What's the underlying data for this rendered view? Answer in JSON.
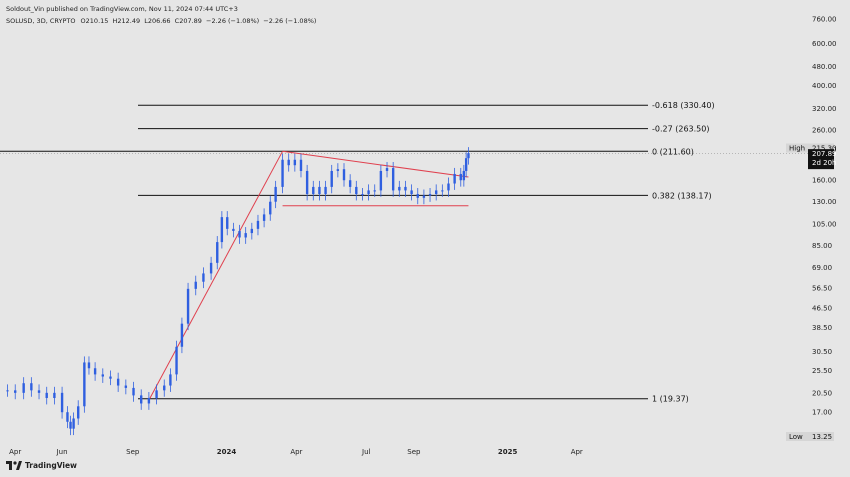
{
  "header": {
    "publisher": "Soldout_Vin published on TradingView.com, Nov 11, 2024 07:44 UTC+3",
    "symbol": "SOLUSD, 3D, CRYPTO",
    "open_label": "O",
    "open": "210.15",
    "high_label": "H",
    "high": "212.49",
    "low_label": "L",
    "low": "206.66",
    "close_label": "C",
    "close": "207.89",
    "change": "−2.26 (−1.08%)",
    "change2": "−2.26 (−1.08%)"
  },
  "footer": {
    "brand": "TradingView"
  },
  "colors": {
    "background": "#e6e6e6",
    "candle": "#2f5fe0",
    "trendline": "#e0404e",
    "fib_line": "#111111",
    "price_tag": "#111111"
  },
  "price_tags": {
    "high_label": "High",
    "high_value": "215.30",
    "last_price": "207.89",
    "countdown": "2d 20h",
    "low_label": "Low",
    "low_value": "13.25"
  },
  "chart_data": {
    "type": "candlestick",
    "title": "SOLUSD, 3D, CRYPTO",
    "y_scale": "log",
    "ylim": [
      13.25,
      760
    ],
    "y_ticks": [
      "760.00",
      "600.00",
      "480.00",
      "400.00",
      "320.00",
      "260.00",
      "215.30",
      "160.00",
      "130.00",
      "105.00",
      "85.00",
      "69.00",
      "56.50",
      "46.50",
      "38.50",
      "30.50",
      "25.50",
      "20.50",
      "17.00"
    ],
    "x_ticks": [
      "Apr",
      "Jun",
      "Sep",
      "2024",
      "Apr",
      "Jul",
      "Sep",
      "2025",
      "Apr"
    ],
    "fib_levels": [
      {
        "label": "-0.618 (330.40)",
        "value": 330.4
      },
      {
        "label": "-0.27 (263.50)",
        "value": 263.5
      },
      {
        "label": "0 (211.60)",
        "value": 211.6
      },
      {
        "label": "0.382 (138.17)",
        "value": 138.17
      },
      {
        "label": "1 (19.37)",
        "value": 19.37
      }
    ],
    "trendlines": [
      {
        "name": "rally",
        "from": [
          "2023-09-23",
          19.37
        ],
        "to": [
          "2024-03-14",
          211.6
        ]
      },
      {
        "name": "descending resistance",
        "from": [
          "2024-03-14",
          211.6
        ],
        "to": [
          "2024-11-11",
          165
        ]
      },
      {
        "name": "support",
        "from": [
          "2024-03-14",
          125
        ],
        "to": [
          "2024-11-11",
          125
        ]
      }
    ],
    "close_series": [
      [
        "2023-03-22",
        21.0
      ],
      [
        "2023-04-01",
        20.5
      ],
      [
        "2023-04-12",
        22.5
      ],
      [
        "2023-04-22",
        21.0
      ],
      [
        "2023-05-02",
        20.5
      ],
      [
        "2023-05-12",
        19.5
      ],
      [
        "2023-05-22",
        20.5
      ],
      [
        "2023-06-01",
        17.0
      ],
      [
        "2023-06-08",
        15.5
      ],
      [
        "2023-06-12",
        14.5
      ],
      [
        "2023-06-16",
        16.0
      ],
      [
        "2023-06-22",
        18.0
      ],
      [
        "2023-06-30",
        27.5
      ],
      [
        "2023-07-06",
        26.0
      ],
      [
        "2023-07-14",
        24.5
      ],
      [
        "2023-07-24",
        24.0
      ],
      [
        "2023-08-03",
        23.5
      ],
      [
        "2023-08-13",
        22.0
      ],
      [
        "2023-08-23",
        21.5
      ],
      [
        "2023-09-02",
        20.0
      ],
      [
        "2023-09-12",
        18.5
      ],
      [
        "2023-09-22",
        19.5
      ],
      [
        "2023-10-02",
        21.0
      ],
      [
        "2023-10-12",
        22.0
      ],
      [
        "2023-10-20",
        24.5
      ],
      [
        "2023-10-28",
        32.0
      ],
      [
        "2023-11-04",
        40.0
      ],
      [
        "2023-11-12",
        56.0
      ],
      [
        "2023-11-22",
        60.0
      ],
      [
        "2023-12-02",
        65.0
      ],
      [
        "2023-12-12",
        72.0
      ],
      [
        "2023-12-20",
        88.0
      ],
      [
        "2023-12-26",
        112.0
      ],
      [
        "2024-01-02",
        100.0
      ],
      [
        "2024-01-10",
        98.0
      ],
      [
        "2024-01-18",
        92.0
      ],
      [
        "2024-01-26",
        96.0
      ],
      [
        "2024-02-03",
        100.0
      ],
      [
        "2024-02-11",
        108.0
      ],
      [
        "2024-02-19",
        115.0
      ],
      [
        "2024-02-27",
        130.0
      ],
      [
        "2024-03-05",
        150.0
      ],
      [
        "2024-03-14",
        195.0
      ],
      [
        "2024-03-22",
        185.0
      ],
      [
        "2024-03-30",
        195.0
      ],
      [
        "2024-04-07",
        175.0
      ],
      [
        "2024-04-15",
        140.0
      ],
      [
        "2024-04-23",
        150.0
      ],
      [
        "2024-05-01",
        140.0
      ],
      [
        "2024-05-09",
        150.0
      ],
      [
        "2024-05-17",
        175.0
      ],
      [
        "2024-05-25",
        178.0
      ],
      [
        "2024-06-02",
        160.0
      ],
      [
        "2024-06-10",
        150.0
      ],
      [
        "2024-06-18",
        140.0
      ],
      [
        "2024-06-26",
        140.0
      ],
      [
        "2024-07-04",
        145.0
      ],
      [
        "2024-07-12",
        145.0
      ],
      [
        "2024-07-20",
        175.0
      ],
      [
        "2024-07-28",
        180.0
      ],
      [
        "2024-08-05",
        145.0
      ],
      [
        "2024-08-13",
        150.0
      ],
      [
        "2024-08-21",
        145.0
      ],
      [
        "2024-08-29",
        140.0
      ],
      [
        "2024-09-06",
        135.0
      ],
      [
        "2024-09-14",
        138.0
      ],
      [
        "2024-09-22",
        140.0
      ],
      [
        "2024-09-30",
        145.0
      ],
      [
        "2024-10-08",
        145.0
      ],
      [
        "2024-10-16",
        155.0
      ],
      [
        "2024-10-24",
        170.0
      ],
      [
        "2024-11-01",
        160.0
      ],
      [
        "2024-11-05",
        175.0
      ],
      [
        "2024-11-08",
        198.0
      ],
      [
        "2024-11-11",
        207.89
      ]
    ]
  }
}
